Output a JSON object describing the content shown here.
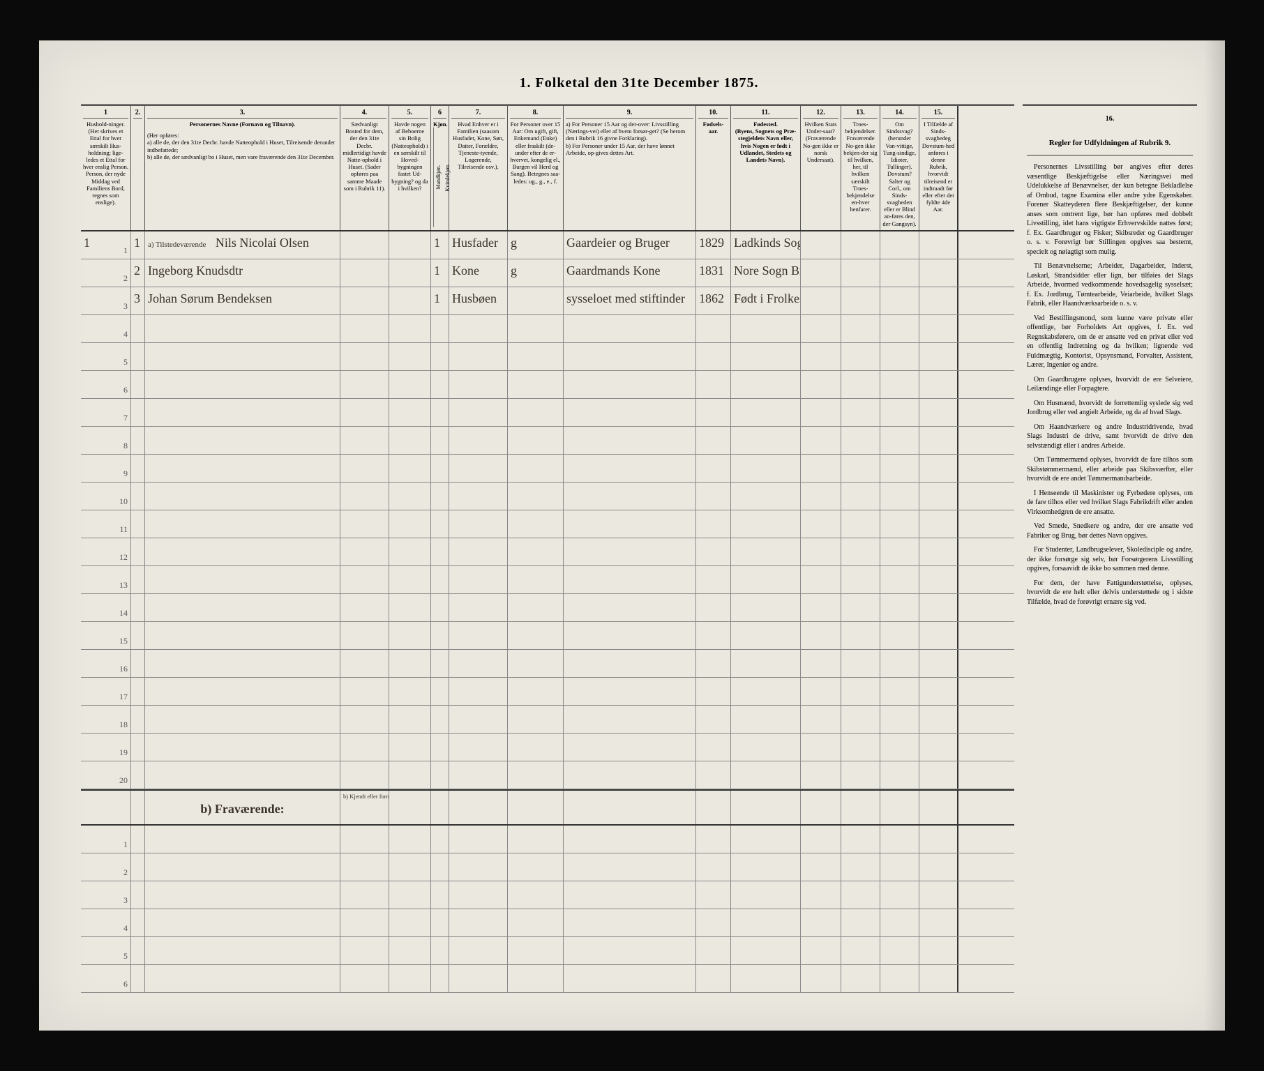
{
  "title": "1. Folketal den 31te December 1875.",
  "columns": {
    "c1": {
      "num": "1",
      "head": "Hushold-ninger. (Her skrives et Ettal for hver særskilt Hus-holdning; lige-ledes et Ettal for hver enslig Person. Person, der nyde Middag ved Familiens Bord, regnes som enslige)."
    },
    "c2": {
      "num": "2.",
      "head": ""
    },
    "c3": {
      "num": "3.",
      "head": "Personernes Navne (Fornavn og Tilnavn).",
      "sub": "(Her opføres:\na) alle de, der den 31te Decbr. havde Natteophold i Huset, Tilreisende derunder indbefattede;\nb) alle de, der sædvanligt bo i Huset, men vare fraværende den 31te December."
    },
    "c4": {
      "num": "4.",
      "head": "Sædvanligt Bosted for dem, der den 31te Decbr. midlertidigt havde Natte-ophold i Huset. (Sader opføres paa samme Maade som i Rubrik 11)."
    },
    "c5": {
      "num": "5.",
      "head": "Havde nogen af Beboerne sin Bolig (Natteophold) i en særskilt til Hoved-bygningen fastet Ud-bygning? og da i hvilken?"
    },
    "c6": {
      "num": "6",
      "head": "Kjøn.",
      "sub_m": "Mandkjøn.",
      "sub_k": "Kvindekjøn."
    },
    "c7": {
      "num": "7.",
      "head": "Hvad Enhver er i Familien (saasom Husfader, Kone, Søn, Datter, Forældre, Tjeneste-tyende, Logerende, Tilreisende osv.)."
    },
    "c8": {
      "num": "8.",
      "head": "For Personer over 15 Aar: Om ugift, gift, Enkemand (Enke) eller fraskilt (de-under efter de er-hvervet, kongelig el., Burgen vil Herd og Sang). Betegnes saa-ledes: ug., g., e., f."
    },
    "c9": {
      "num": "9.",
      "head": "a) For Personer 15 Aar og der-over: Livsstilling (Nærings-vei) eller af hvem forsør-get? (Se herom den i Rubrik 16 givne Forklaring).\nb) For Personer under 15 Aar, der have lønnet Arbeide, op-gives dettes Art."
    },
    "c10": {
      "num": "10.",
      "head": "Fødsels-aar."
    },
    "c11": {
      "num": "11.",
      "head": "Fødested.\n(Byens, Sognets og Præ-stegjeldets Navn eller, hvis Nogen er født i Udlandet, Stedets og Landets Navn)."
    },
    "c12": {
      "num": "12.",
      "head": "Hvilken Stats Under-saat? (Fraværende No-gen ikke er norsk Undersaat)."
    },
    "c13": {
      "num": "13.",
      "head": "Troes-bekjendelser. Fraværende No-gen ikke bekjen-der sig til hvilken, her, til hvilken særskilt Troes-bekjendelse en-hver henfarer."
    },
    "c14": {
      "num": "14.",
      "head": "Om Sindssvag? (herunder Van-vittige, Tung-sindige, Idioter, Tullinger). Dovstum? Salter og Corl., om Sinds-svagheden eller er Blind an-føres den, der Gangsyn)."
    },
    "c15": {
      "num": "15.",
      "head": "I Tilfælde af Sinds-svaghedeg Dovstum-hed anføres i denne Rubrik, hvorvidt tilreisend er indtraadt før eller efter det fyldte 4de Aar."
    }
  },
  "col16": {
    "num": "16.",
    "head": "Regler for Udfyldningen af Rubrik 9."
  },
  "section_a": "a) Tilstedeværende",
  "section_b": "b) Fraværende:",
  "section_b_col4": "b) Kjendt eller formodet Opholdssted.",
  "rows_a": [
    {
      "n": "1",
      "hh": "1",
      "pn": "1",
      "name": "Nils Nicolai Olsen",
      "c4": "",
      "c5": "",
      "c6": "1",
      "c7": "Husfader",
      "c8": "g",
      "c9": "Gaardeier og Bruger",
      "c10": "1829",
      "c11": "Ladkinds Sogn Pr."
    },
    {
      "n": "2",
      "hh": "",
      "pn": "2",
      "name": "Ingeborg Knudsdtr",
      "c4": "",
      "c5": "",
      "c6": "1",
      "c7": "Kone",
      "c8": "g",
      "c9": "Gaardmands Kone",
      "c10": "1831",
      "c11": "Nore Sogn Br."
    },
    {
      "n": "3",
      "hh": "",
      "pn": "3",
      "name": "Johan Sørum Bendeksen",
      "c4": "",
      "c5": "",
      "c6": "1",
      "c7": "Husbøen",
      "c8": "",
      "c9": "sysseloet med stiftinder",
      "c10": "1862",
      "c11": "Født i Frolkes Sogn i Bergen"
    },
    {
      "n": "4"
    },
    {
      "n": "5"
    },
    {
      "n": "6"
    },
    {
      "n": "7"
    },
    {
      "n": "8"
    },
    {
      "n": "9"
    },
    {
      "n": "10"
    },
    {
      "n": "11"
    },
    {
      "n": "12"
    },
    {
      "n": "13"
    },
    {
      "n": "14"
    },
    {
      "n": "15"
    },
    {
      "n": "16"
    },
    {
      "n": "17"
    },
    {
      "n": "18"
    },
    {
      "n": "19"
    },
    {
      "n": "20"
    }
  ],
  "rows_b": [
    {
      "n": "1"
    },
    {
      "n": "2"
    },
    {
      "n": "3"
    },
    {
      "n": "4"
    },
    {
      "n": "5"
    },
    {
      "n": "6"
    }
  ],
  "instructions": [
    "Personernes Livsstilling bør angives efter deres væsentlige Beskjæftigelse eller Næringsvei med Udelukkelse af Benævnelser, der kun betegne Bekladlelse af Ombud, tagne Examina eller andre ydre Egenskaber. Forener Skatteyderen flere Beskjæftigelser, der kunne anses som omtrent lige, bør han opføres med dobbelt Livsstilling, idet hans vigtigste Erhvervskilde nattes først; f. Ex. Gaardbruger og Fisker; Skibsreder og Gaardbruger o. s. v. Forøvrigt bør Stillingen opgives saa bestemt, specielt og nøiagtigt som mulig.",
    "Til Benævnelserne; Arbeider, Dagarbeider, Inderst, Løskarl, Strandsidder eller lign, bør tilføies det Slags Arbeide, hvormed vedkommende hovedsagelig sysselsæt; f. Ex. Jordbrug, Tømtearbeide, Veiarbeide, hvilket Slags Fabrik, eller Haandværksarbeide o. s. v.",
    "Ved Bestillingsmond, som kunne være private eller offentlige, bør Forholdets Art opgives, f. Ex. ved Regnskabsførere, om de er ansatte ved en privat eller ved en offentlig Indretning og da hvilken; lignende ved Fuldmægtig, Kontorist, Opsynsmand, Forvalter, Assistent, Lærer, Ingeniør og andre.",
    "Om Gaardbrugere oplyses, hvorvidt de ere Selveiere, Leilændinge eller Forpagtere.",
    "Om Husmænd, hvorvidt de forrettemlig syslede sig ved Jordbrug eller ved angielt Arbeide, og da af hvad Slags.",
    "Om Haandværkere og andre Industridrivende, hvad Slags Industri de drive, samt hvorvidt de drive den selvstændigt eller i andres Arbeide.",
    "Om Tømmermænd oplyses, hvorvidt de fare tilhos som Skibstømmermænd, eller arbeide paa Skibsværfter, eller hvorvidt de ere andet Tømmermandsarbeide.",
    "I Henseende til Maskinister og Fyrbødere oplyses, om de fare tilhos eller ved hvilket Slags Fabrikdrift eller anden Virksomhedgren de ere ansatte.",
    "Ved Smede, Snedkere og andre, der ere ansatte ved Fabriker og Brug, bør dettes Navn opgives.",
    "For Studenter, Landbrugselever, Skoledisciple og andre, der ikke forsørge sig selv, bør Forsørgerens Livsstilling opgives, forsaavidt de ikke bo sammen med denne.",
    "For dem, der have Fattigunderstøttelse, oplyses, hvorvidt de ere helt eller delvis understøttede og i sidste Tilfælde, hvad de forøvrigt ernære sig ved."
  ]
}
